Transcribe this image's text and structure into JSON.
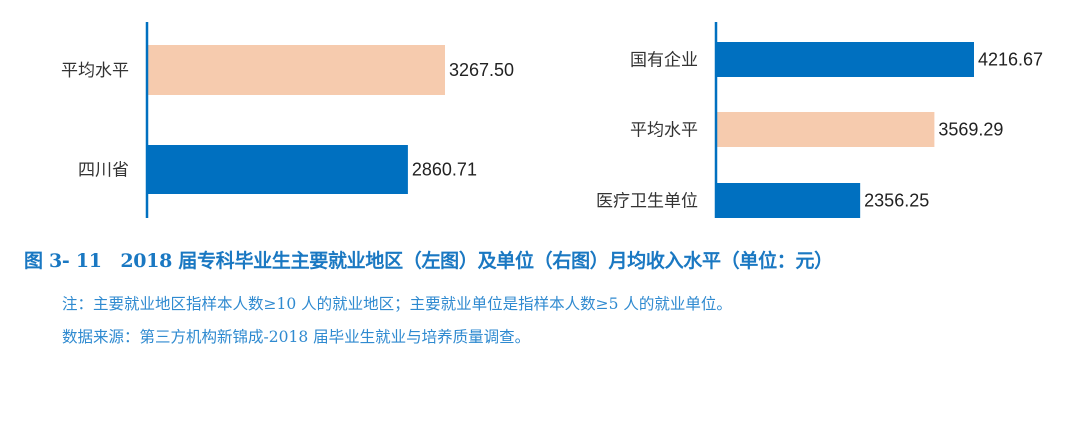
{
  "chart_data": [
    {
      "type": "bar",
      "orientation": "horizontal",
      "categories": [
        "平均水平",
        "四川省"
      ],
      "values": [
        3267.5,
        2860.71
      ],
      "colors": [
        "#F6CBAE",
        "#0070C0"
      ],
      "data_labels": [
        "3267.50",
        "2860.71"
      ],
      "xlim": [
        0,
        3600
      ]
    },
    {
      "type": "bar",
      "orientation": "horizontal",
      "categories": [
        "国有企业",
        "平均水平",
        "医疗卫生单位"
      ],
      "values": [
        4216.67,
        3569.29,
        2356.25
      ],
      "colors": [
        "#0070C0",
        "#F6CBAE",
        "#0070C0"
      ],
      "data_labels": [
        "4216.67",
        "3569.29",
        "2356.25"
      ],
      "xlim": [
        0,
        4800
      ]
    }
  ],
  "caption": "图 3- 11　2018 届专科毕业生主要就业地区（左图）及单位（右图）月均收入水平（单位：元）",
  "note": "注：主要就业地区指样本人数≥10 人的就业地区；主要就业单位是指样本人数≥5 人的就业单位。",
  "source": "数据来源：第三方机构新锦成-2018 届毕业生就业与培养质量调查。"
}
